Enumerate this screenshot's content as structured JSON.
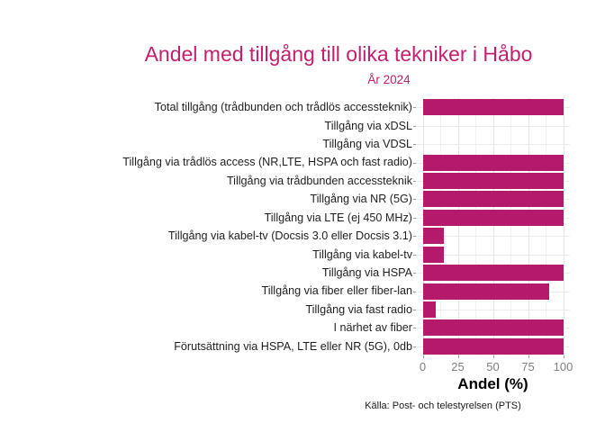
{
  "chart_data": {
    "type": "bar",
    "orientation": "horizontal",
    "title": "Andel med tillgång till olika tekniker i Håbo",
    "subtitle": "År 2024",
    "xlabel": "Andel (%)",
    "caption": "Källa: Post- och telestyrelsen (PTS)",
    "xlim": [
      0,
      100
    ],
    "xticks": [
      0,
      25,
      50,
      75,
      100
    ],
    "minor_ticks": [
      12.5,
      37.5,
      62.5,
      87.5
    ],
    "grid": true,
    "legend": "none",
    "bar_color": "#B5196B",
    "title_color": "#C41E70",
    "categories": [
      "Total tillgång (trådbunden och trådlös accessteknik)",
      "Tillgång via xDSL",
      "Tillgång via VDSL",
      "Tillgång via trådlös access (NR,LTE, HSPA och fast radio)",
      "Tillgång via trådbunden accessteknik",
      "Tillgång via NR (5G)",
      "Tillgång via LTE (ej 450 MHz)",
      "Tillgång via kabel-tv (Docsis 3.0 eller Docsis 3.1)",
      "Tillgång via kabel-tv",
      "Tillgång via HSPA",
      "Tillgång via fiber eller fiber-lan",
      "Tillgång via fast radio",
      "I närhet av fiber",
      "Förutsättning via HSPA, LTE eller NR (5G), 0db"
    ],
    "values": [
      100,
      0,
      0,
      100,
      100,
      100,
      100,
      15,
      15,
      100,
      90,
      9,
      100,
      100
    ]
  }
}
